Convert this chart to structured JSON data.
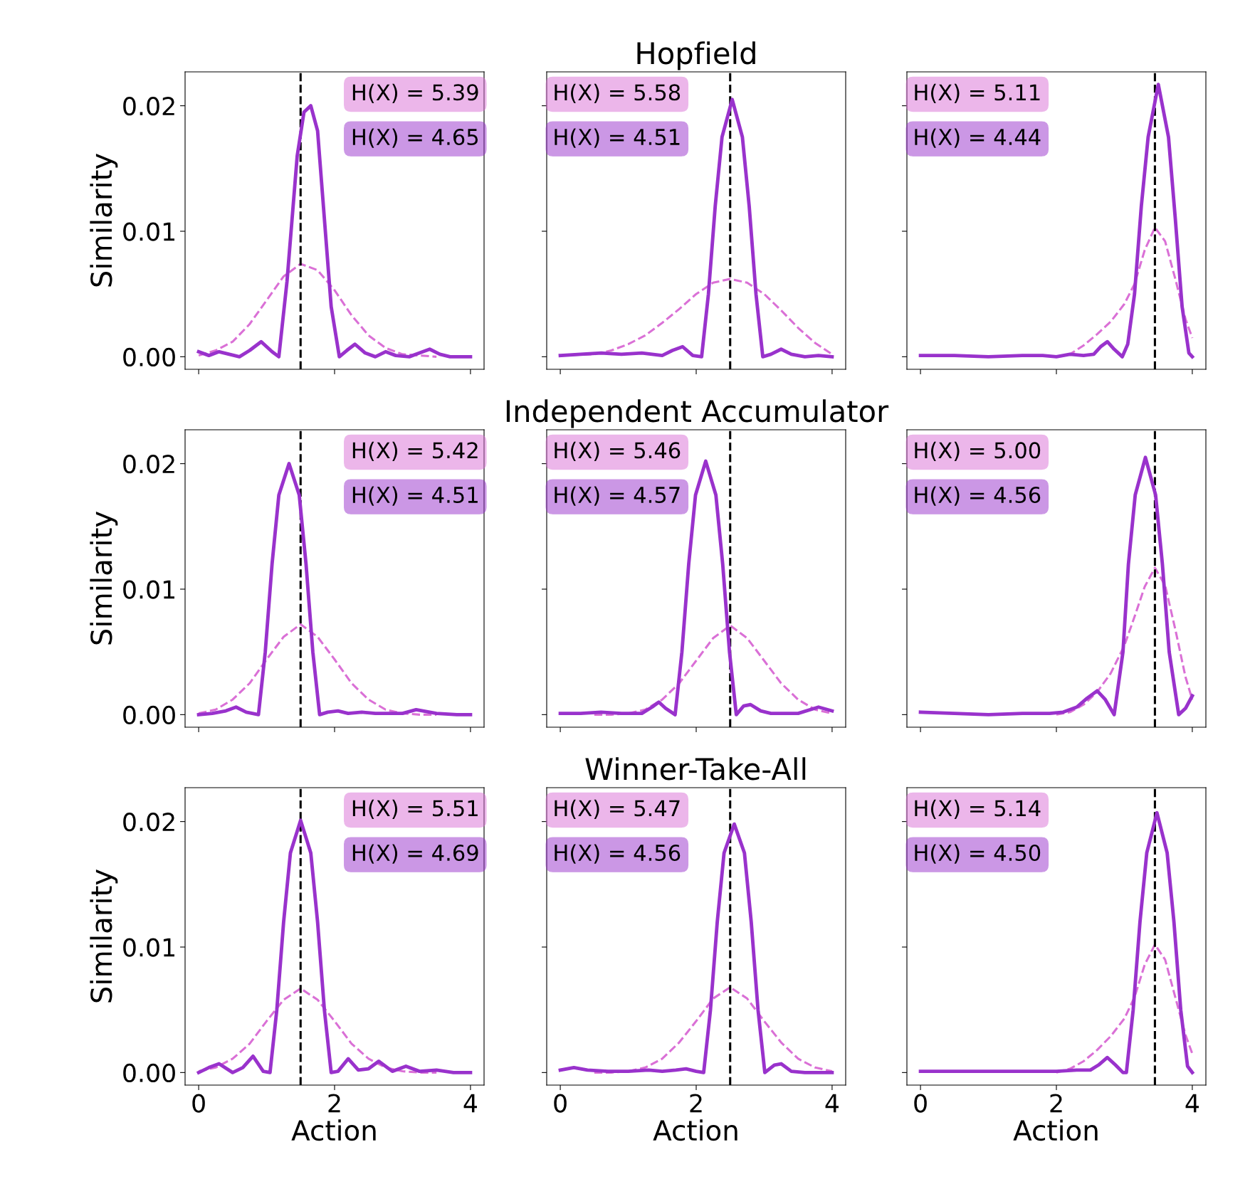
{
  "chart_data": [
    {
      "type": "line",
      "ylabel": "Similarity",
      "xlim": [
        -0.2,
        4.2
      ],
      "ylim": [
        -0.001,
        0.0227
      ],
      "xticks": [
        {
          "value": 0,
          "label": null
        },
        {
          "value": 2,
          "label": null
        },
        {
          "value": 4,
          "label": null
        }
      ],
      "yticks": [
        {
          "value": 0,
          "label": "0.00"
        },
        {
          "value": 0.01,
          "label": "0.01"
        },
        {
          "value": 0.02,
          "label": "0.02"
        }
      ],
      "tick_labels": "y",
      "grid": false,
      "legend": false,
      "annotations": [
        "H(X) = 5.39",
        "H(X) = 4.65"
      ],
      "ref_lines": [
        {
          "axis": "x",
          "value": 1.5,
          "color": "#000000",
          "line_style": "dashed"
        }
      ],
      "series": [
        {
          "color": "#da70d6",
          "line_style": "dashed",
          "x": [
            0,
            0.25,
            0.5,
            0.75,
            1.0,
            1.25,
            1.5,
            1.75,
            2.0,
            2.25,
            2.5,
            2.75,
            3.0,
            3.25,
            3.5
          ],
          "values": [
            0.0001,
            0.0005,
            0.0012,
            0.0026,
            0.0045,
            0.0064,
            0.0074,
            0.0069,
            0.0053,
            0.0033,
            0.0017,
            0.0007,
            0.0002,
            0.0001,
            0
          ]
        },
        {
          "color": "#9932cc",
          "line_style": "solid",
          "x": [
            0,
            0.15,
            0.3,
            0.45,
            0.6,
            0.75,
            0.92,
            1.08,
            1.18,
            1.3,
            1.45,
            1.55,
            1.65,
            1.75,
            1.85,
            1.95,
            2.07,
            2.18,
            2.3,
            2.45,
            2.6,
            2.75,
            2.9,
            3.1,
            3.25,
            3.4,
            3.55,
            3.7,
            4.0
          ],
          "values": [
            0.0004,
            0.0001,
            0.0004,
            0.0002,
            0,
            0.0005,
            0.0012,
            0.0004,
            0,
            0.006,
            0.016,
            0.0195,
            0.02,
            0.018,
            0.011,
            0.004,
            0,
            0.0005,
            0.001,
            0.0003,
            0,
            0.0004,
            0.0001,
            0,
            0.0003,
            0.0006,
            0.0002,
            0,
            0
          ]
        }
      ]
    },
    {
      "type": "line",
      "title": "Hopfield",
      "xlim": [
        -0.2,
        4.2
      ],
      "ylim": [
        -0.001,
        0.0227
      ],
      "xticks": [
        {
          "value": 0,
          "label": null
        },
        {
          "value": 2,
          "label": null
        },
        {
          "value": 4,
          "label": null
        }
      ],
      "yticks": [
        {
          "value": 0,
          "label": null
        },
        {
          "value": 0.01,
          "label": null
        },
        {
          "value": 0.02,
          "label": null
        }
      ],
      "tick_labels": false,
      "grid": false,
      "legend": false,
      "annotations": [
        "H(X) = 5.58",
        "H(X) = 4.51"
      ],
      "ref_lines": [
        {
          "axis": "x",
          "value": 2.5,
          "color": "#000000",
          "line_style": "dashed"
        }
      ],
      "series": [
        {
          "color": "#da70d6",
          "line_style": "dashed",
          "x": [
            0,
            0.5,
            0.75,
            1.0,
            1.25,
            1.5,
            1.75,
            2.0,
            2.25,
            2.5,
            2.75,
            3.0,
            3.25,
            3.5,
            3.75,
            4.0
          ],
          "values": [
            0.0001,
            0.0002,
            0.0005,
            0.001,
            0.0017,
            0.0027,
            0.0038,
            0.005,
            0.0059,
            0.0062,
            0.0059,
            0.005,
            0.0037,
            0.0023,
            0.0011,
            0.0002
          ]
        },
        {
          "color": "#9932cc",
          "line_style": "solid",
          "x": [
            0,
            0.3,
            0.6,
            0.9,
            1.2,
            1.5,
            1.65,
            1.8,
            1.95,
            2.08,
            2.18,
            2.28,
            2.38,
            2.53,
            2.68,
            2.78,
            2.88,
            2.98,
            3.1,
            3.25,
            3.4,
            3.6,
            3.8,
            4.0
          ],
          "values": [
            0.0001,
            0.0002,
            0.0003,
            0.0002,
            0.0003,
            0.0001,
            0.0005,
            0.0008,
            0.0001,
            0,
            0.005,
            0.012,
            0.0175,
            0.0205,
            0.0175,
            0.012,
            0.005,
            0,
            0.0002,
            0.0006,
            0.0002,
            0,
            0.0001,
            0
          ]
        }
      ]
    },
    {
      "type": "line",
      "xlim": [
        -0.2,
        4.2
      ],
      "ylim": [
        -0.001,
        0.0227
      ],
      "xticks": [
        {
          "value": 0,
          "label": null
        },
        {
          "value": 2,
          "label": null
        },
        {
          "value": 4,
          "label": null
        }
      ],
      "yticks": [
        {
          "value": 0,
          "label": null
        },
        {
          "value": 0.01,
          "label": null
        },
        {
          "value": 0.02,
          "label": null
        }
      ],
      "tick_labels": false,
      "grid": false,
      "legend": false,
      "annotations": [
        "H(X) = 5.11",
        "H(X) = 4.44"
      ],
      "ref_lines": [
        {
          "axis": "x",
          "value": 3.45,
          "color": "#000000",
          "line_style": "dashed"
        }
      ],
      "series": [
        {
          "color": "#da70d6",
          "line_style": "dashed",
          "x": [
            2.0,
            2.2,
            2.4,
            2.6,
            2.8,
            3.0,
            3.15,
            3.3,
            3.45,
            3.6,
            3.75,
            3.9,
            4.0
          ],
          "values": [
            0,
            0.0002,
            0.0009,
            0.0018,
            0.0028,
            0.0042,
            0.0058,
            0.0085,
            0.0103,
            0.0092,
            0.0062,
            0.003,
            0.0015
          ]
        },
        {
          "color": "#9932cc",
          "line_style": "solid",
          "x": [
            0,
            0.5,
            1.0,
            1.5,
            1.8,
            2.0,
            2.2,
            2.4,
            2.55,
            2.65,
            2.75,
            2.85,
            2.97,
            3.05,
            3.15,
            3.25,
            3.35,
            3.5,
            3.65,
            3.75,
            3.85,
            3.95,
            4.0
          ],
          "values": [
            0.0001,
            0.0001,
            0,
            0.0001,
            0.0001,
            0,
            0.0002,
            0.0001,
            0.0002,
            0.0008,
            0.0012,
            0.0006,
            0,
            0.001,
            0.005,
            0.012,
            0.0175,
            0.0217,
            0.0175,
            0.011,
            0.004,
            0.0003,
            0
          ]
        }
      ]
    },
    {
      "type": "line",
      "ylabel": "Similarity",
      "xlim": [
        -0.2,
        4.2
      ],
      "ylim": [
        -0.001,
        0.0227
      ],
      "xticks": [
        {
          "value": 0,
          "label": null
        },
        {
          "value": 2,
          "label": null
        },
        {
          "value": 4,
          "label": null
        }
      ],
      "yticks": [
        {
          "value": 0,
          "label": "0.00"
        },
        {
          "value": 0.01,
          "label": "0.01"
        },
        {
          "value": 0.02,
          "label": "0.02"
        }
      ],
      "tick_labels": "y",
      "grid": false,
      "legend": false,
      "annotations": [
        "H(X) = 5.42",
        "H(X) = 4.51"
      ],
      "ref_lines": [
        {
          "axis": "x",
          "value": 1.5,
          "color": "#000000",
          "line_style": "dashed"
        }
      ],
      "series": [
        {
          "color": "#da70d6",
          "line_style": "dashed",
          "x": [
            0,
            0.25,
            0.5,
            0.75,
            1.0,
            1.25,
            1.5,
            1.75,
            2.0,
            2.25,
            2.5,
            2.75,
            3.0,
            3.25,
            3.5
          ],
          "values": [
            0.0001,
            0.0004,
            0.0012,
            0.0025,
            0.0044,
            0.0062,
            0.0072,
            0.0062,
            0.0044,
            0.0025,
            0.0012,
            0.0004,
            0.0001,
            0,
            0
          ]
        },
        {
          "color": "#9932cc",
          "line_style": "solid",
          "x": [
            0,
            0.2,
            0.4,
            0.55,
            0.7,
            0.88,
            0.98,
            1.08,
            1.18,
            1.33,
            1.48,
            1.58,
            1.68,
            1.78,
            1.9,
            2.05,
            2.2,
            2.4,
            2.6,
            2.8,
            3.0,
            3.2,
            3.5,
            3.8,
            4.0
          ],
          "values": [
            0,
            0.0001,
            0.0003,
            0.0006,
            0.0002,
            0,
            0.005,
            0.012,
            0.0175,
            0.02,
            0.0175,
            0.012,
            0.005,
            0,
            0.0002,
            0.0003,
            0.0001,
            0.0002,
            0.0001,
            0.0001,
            0.0001,
            0.0004,
            0.0001,
            0,
            0
          ]
        }
      ]
    },
    {
      "type": "line",
      "title": "Independent Accumulator",
      "xlim": [
        -0.2,
        4.2
      ],
      "ylim": [
        -0.001,
        0.0227
      ],
      "xticks": [
        {
          "value": 0,
          "label": null
        },
        {
          "value": 2,
          "label": null
        },
        {
          "value": 4,
          "label": null
        }
      ],
      "yticks": [
        {
          "value": 0,
          "label": null
        },
        {
          "value": 0.01,
          "label": null
        },
        {
          "value": 0.02,
          "label": null
        }
      ],
      "tick_labels": false,
      "grid": false,
      "legend": false,
      "annotations": [
        "H(X) = 5.46",
        "H(X) = 4.57"
      ],
      "ref_lines": [
        {
          "axis": "x",
          "value": 2.5,
          "color": "#000000",
          "line_style": "dashed"
        }
      ],
      "series": [
        {
          "color": "#da70d6",
          "line_style": "dashed",
          "x": [
            0.5,
            0.75,
            1.0,
            1.25,
            1.5,
            1.75,
            2.0,
            2.25,
            2.5,
            2.75,
            3.0,
            3.25,
            3.5,
            3.75,
            4.0
          ],
          "values": [
            0,
            0,
            0.0001,
            0.0004,
            0.0012,
            0.0025,
            0.0043,
            0.0061,
            0.0071,
            0.0061,
            0.0043,
            0.0025,
            0.0012,
            0.0004,
            0.0001
          ]
        },
        {
          "color": "#9932cc",
          "line_style": "solid",
          "x": [
            0,
            0.3,
            0.6,
            0.9,
            1.2,
            1.35,
            1.45,
            1.55,
            1.69,
            1.79,
            1.89,
            1.99,
            2.14,
            2.29,
            2.39,
            2.49,
            2.59,
            2.7,
            2.8,
            2.95,
            3.1,
            3.3,
            3.5,
            3.8,
            4.0
          ],
          "values": [
            0.0001,
            0.0001,
            0.0002,
            0.0001,
            0.0001,
            0.0006,
            0.001,
            0.0005,
            0,
            0.005,
            0.012,
            0.0175,
            0.0202,
            0.0175,
            0.012,
            0.005,
            0,
            0.0007,
            0.0008,
            0.0003,
            0.0001,
            0.0001,
            0.0001,
            0.0006,
            0.0003
          ]
        }
      ]
    },
    {
      "type": "line",
      "xlim": [
        -0.2,
        4.2
      ],
      "ylim": [
        -0.001,
        0.0227
      ],
      "xticks": [
        {
          "value": 0,
          "label": null
        },
        {
          "value": 2,
          "label": null
        },
        {
          "value": 4,
          "label": null
        }
      ],
      "yticks": [
        {
          "value": 0,
          "label": null
        },
        {
          "value": 0.01,
          "label": null
        },
        {
          "value": 0.02,
          "label": null
        }
      ],
      "tick_labels": false,
      "grid": false,
      "legend": false,
      "annotations": [
        "H(X) = 5.00",
        "H(X) = 4.56"
      ],
      "ref_lines": [
        {
          "axis": "x",
          "value": 3.45,
          "color": "#000000",
          "line_style": "dashed"
        }
      ],
      "series": [
        {
          "color": "#da70d6",
          "line_style": "dashed",
          "x": [
            2.0,
            2.2,
            2.4,
            2.6,
            2.8,
            3.0,
            3.15,
            3.3,
            3.45,
            3.6,
            3.75,
            3.9,
            4.0
          ],
          "values": [
            0,
            0.0002,
            0.0008,
            0.0018,
            0.0033,
            0.0055,
            0.0078,
            0.0102,
            0.0117,
            0.0103,
            0.0068,
            0.003,
            0.0012
          ]
        },
        {
          "color": "#9932cc",
          "line_style": "solid",
          "x": [
            0,
            0.5,
            1.0,
            1.5,
            1.9,
            2.1,
            2.3,
            2.45,
            2.6,
            2.72,
            2.85,
            2.98,
            3.06,
            3.16,
            3.31,
            3.46,
            3.56,
            3.66,
            3.8,
            3.9,
            4.0
          ],
          "values": [
            0.0002,
            0.0001,
            0,
            0.0001,
            0.0001,
            0.0002,
            0.0006,
            0.0013,
            0.0019,
            0.0012,
            0,
            0.005,
            0.012,
            0.0175,
            0.0205,
            0.0175,
            0.012,
            0.005,
            0,
            0.0005,
            0.0015
          ]
        }
      ]
    },
    {
      "type": "line",
      "ylabel": "Similarity",
      "xlabel": "Action",
      "xlim": [
        -0.2,
        4.2
      ],
      "ylim": [
        -0.001,
        0.0227
      ],
      "xticks": [
        0,
        2,
        4
      ],
      "yticks": [
        {
          "value": 0,
          "label": "0.00"
        },
        {
          "value": 0.01,
          "label": "0.01"
        },
        {
          "value": 0.02,
          "label": "0.02"
        }
      ],
      "grid": false,
      "legend": false,
      "annotations": [
        "H(X) = 5.51",
        "H(X) = 4.69"
      ],
      "ref_lines": [
        {
          "axis": "x",
          "value": 1.5,
          "color": "#000000",
          "line_style": "dashed"
        }
      ],
      "series": [
        {
          "color": "#da70d6",
          "line_style": "dashed",
          "x": [
            0,
            0.25,
            0.5,
            0.75,
            1.0,
            1.25,
            1.5,
            1.75,
            2.0,
            2.25,
            2.5,
            2.75,
            3.0,
            3.25,
            3.5
          ],
          "values": [
            0.0001,
            0.0004,
            0.0011,
            0.0023,
            0.0041,
            0.0058,
            0.0067,
            0.0058,
            0.0041,
            0.0023,
            0.0011,
            0.0004,
            0.0001,
            0,
            0
          ]
        },
        {
          "color": "#9932cc",
          "line_style": "solid",
          "x": [
            0,
            0.15,
            0.3,
            0.5,
            0.65,
            0.8,
            0.95,
            1.05,
            1.15,
            1.25,
            1.35,
            1.5,
            1.65,
            1.75,
            1.85,
            1.95,
            2.05,
            2.2,
            2.35,
            2.5,
            2.65,
            2.85,
            3.05,
            3.25,
            3.5,
            3.75,
            4.0
          ],
          "values": [
            0,
            0.0004,
            0.0007,
            0,
            0.0004,
            0.0013,
            0.0001,
            0,
            0.005,
            0.012,
            0.0175,
            0.0201,
            0.0175,
            0.012,
            0.005,
            0,
            0.0001,
            0.0011,
            0.0002,
            0.0003,
            0.0009,
            0.0001,
            0.0005,
            0.0001,
            0.0002,
            0,
            0
          ]
        }
      ]
    },
    {
      "type": "line",
      "title": "Winner-Take-All",
      "xlabel": "Action",
      "xlim": [
        -0.2,
        4.2
      ],
      "ylim": [
        -0.001,
        0.0227
      ],
      "xticks": [
        0,
        2,
        4
      ],
      "yticks": [
        {
          "value": 0,
          "label": null
        },
        {
          "value": 0.01,
          "label": null
        },
        {
          "value": 0.02,
          "label": null
        }
      ],
      "tick_labels": "x",
      "grid": false,
      "legend": false,
      "annotations": [
        "H(X) = 5.47",
        "H(X) = 4.56"
      ],
      "ref_lines": [
        {
          "axis": "x",
          "value": 2.5,
          "color": "#000000",
          "line_style": "dashed"
        }
      ],
      "series": [
        {
          "color": "#da70d6",
          "line_style": "dashed",
          "x": [
            0.5,
            0.75,
            1.0,
            1.25,
            1.5,
            1.75,
            2.0,
            2.25,
            2.5,
            2.75,
            3.0,
            3.25,
            3.5,
            3.75,
            4.0
          ],
          "values": [
            0,
            0,
            0.0001,
            0.0004,
            0.0011,
            0.0024,
            0.0041,
            0.0059,
            0.0068,
            0.0059,
            0.0041,
            0.0024,
            0.0011,
            0.0004,
            0.0001
          ]
        },
        {
          "color": "#9932cc",
          "line_style": "solid",
          "x": [
            0,
            0.2,
            0.4,
            0.7,
            1.0,
            1.3,
            1.5,
            1.7,
            1.85,
            2.0,
            2.11,
            2.21,
            2.31,
            2.41,
            2.56,
            2.71,
            2.81,
            2.91,
            3.01,
            3.15,
            3.25,
            3.4,
            3.6,
            3.8,
            4.0
          ],
          "values": [
            0.0002,
            0.0004,
            0.0002,
            0.0001,
            0.0001,
            0.0002,
            0.0001,
            0.0002,
            0.0003,
            0.0001,
            0,
            0.005,
            0.012,
            0.0175,
            0.0198,
            0.0175,
            0.012,
            0.005,
            0,
            0.0006,
            0.0007,
            0.0001,
            0,
            0,
            0
          ]
        }
      ]
    },
    {
      "type": "line",
      "xlabel": "Action",
      "xlim": [
        -0.2,
        4.2
      ],
      "ylim": [
        -0.001,
        0.0227
      ],
      "xticks": [
        0,
        2,
        4
      ],
      "yticks": [
        {
          "value": 0,
          "label": null
        },
        {
          "value": 0.01,
          "label": null
        },
        {
          "value": 0.02,
          "label": null
        }
      ],
      "tick_labels": "x",
      "grid": false,
      "legend": false,
      "annotations": [
        "H(X) = 5.14",
        "H(X) = 4.50"
      ],
      "ref_lines": [
        {
          "axis": "x",
          "value": 3.45,
          "color": "#000000",
          "line_style": "dashed"
        }
      ],
      "series": [
        {
          "color": "#da70d6",
          "line_style": "dashed",
          "x": [
            2.0,
            2.2,
            2.4,
            2.6,
            2.8,
            3.0,
            3.15,
            3.3,
            3.45,
            3.6,
            3.75,
            3.9,
            4.0
          ],
          "values": [
            0,
            0.0003,
            0.0009,
            0.0018,
            0.0029,
            0.0043,
            0.006,
            0.0086,
            0.0102,
            0.009,
            0.006,
            0.003,
            0.0015
          ]
        },
        {
          "color": "#9932cc",
          "line_style": "solid",
          "x": [
            0,
            0.5,
            1.0,
            1.5,
            2.0,
            2.3,
            2.5,
            2.62,
            2.75,
            2.87,
            2.98,
            3.03,
            3.13,
            3.23,
            3.33,
            3.48,
            3.63,
            3.73,
            3.83,
            3.93,
            4.0
          ],
          "values": [
            0.0001,
            0.0001,
            0.0001,
            0.0001,
            0.0001,
            0.0002,
            0.0002,
            0.0006,
            0.0012,
            0.0006,
            0,
            0,
            0.005,
            0.012,
            0.0175,
            0.0207,
            0.0175,
            0.012,
            0.005,
            0.0005,
            0
          ]
        }
      ]
    }
  ]
}
